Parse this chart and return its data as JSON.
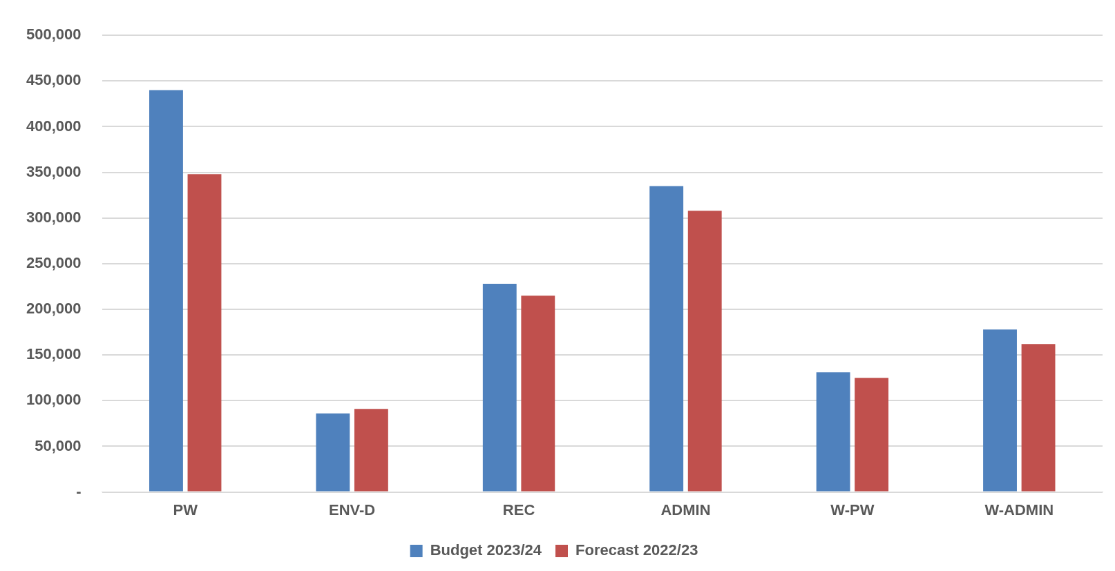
{
  "chart_data": {
    "type": "bar",
    "categories": [
      "PW",
      "ENV-D",
      "REC",
      "ADMIN",
      "W-PW",
      "W-ADMIN"
    ],
    "series": [
      {
        "name": "Budget 2023/24",
        "color": "#4f81bd",
        "values": [
          440000,
          86000,
          228000,
          335000,
          131000,
          178000
        ]
      },
      {
        "name": "Forecast 2022/23",
        "color": "#c0504d",
        "values": [
          348000,
          91000,
          215000,
          308000,
          125000,
          162000
        ]
      }
    ],
    "ylim": [
      0,
      500000
    ],
    "yticks": [
      {
        "value": 0,
        "label": "-"
      },
      {
        "value": 50000,
        "label": "50,000"
      },
      {
        "value": 100000,
        "label": "100,000"
      },
      {
        "value": 150000,
        "label": "150,000"
      },
      {
        "value": 200000,
        "label": "200,000"
      },
      {
        "value": 250000,
        "label": "250,000"
      },
      {
        "value": 300000,
        "label": "300,000"
      },
      {
        "value": 350000,
        "label": "350,000"
      },
      {
        "value": 400000,
        "label": "400,000"
      },
      {
        "value": 450000,
        "label": "450,000"
      },
      {
        "value": 500000,
        "label": "500,000"
      }
    ],
    "grid": "y",
    "legend": "bottom"
  }
}
